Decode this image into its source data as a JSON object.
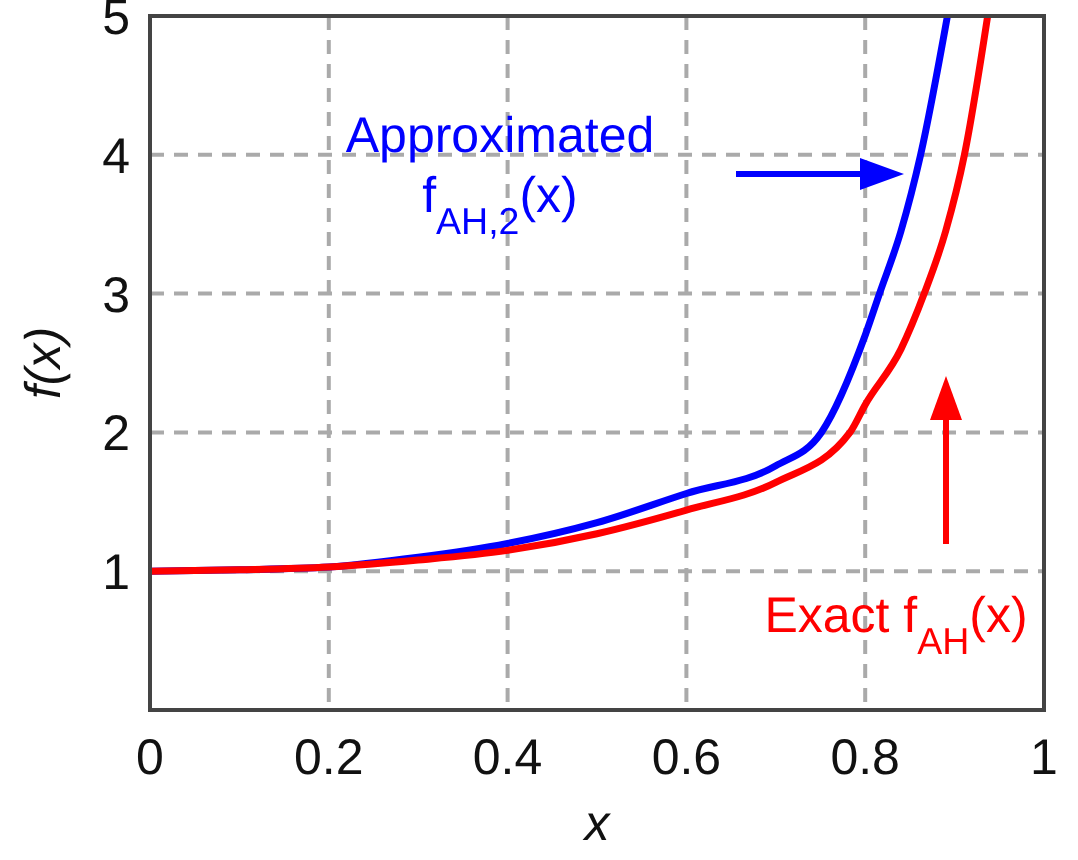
{
  "chart_data": {
    "type": "line",
    "xlabel": "x",
    "ylabel": "f(x)",
    "series": [
      {
        "name": "Approximated f$_{AH,2}$(x)",
        "color": "#0000ff",
        "x": [
          0,
          0.1,
          0.2,
          0.3,
          0.4,
          0.5,
          0.6,
          0.7,
          0.751,
          0.8,
          0.816,
          0.84,
          0.862,
          0.892
        ],
        "values": [
          1,
          1.01,
          1.03,
          1.1,
          1.2,
          1.35,
          1.56,
          1.76,
          2,
          2.7,
          3,
          3.45,
          4,
          5
        ]
      },
      {
        "name": "Exact f$_{AH}$(x)",
        "color": "#ff0000",
        "x": [
          0,
          0.1,
          0.2,
          0.3,
          0.4,
          0.5,
          0.6,
          0.7,
          0.783,
          0.8,
          0.84,
          0.866,
          0.89,
          0.911,
          0.937
        ],
        "values": [
          1,
          1.01,
          1.03,
          1.08,
          1.15,
          1.27,
          1.44,
          1.64,
          2,
          2.2,
          2.6,
          3,
          3.45,
          4,
          5
        ]
      }
    ],
    "xlim": [
      0,
      1
    ],
    "ylim": [
      0,
      5
    ],
    "xticks": [
      0,
      0.2,
      0.4,
      0.6,
      0.8,
      1
    ],
    "yticks": [
      1,
      2,
      3,
      4,
      5
    ],
    "grid": true,
    "legend": "top",
    "line_style": "solid",
    "marker": "none"
  }
}
